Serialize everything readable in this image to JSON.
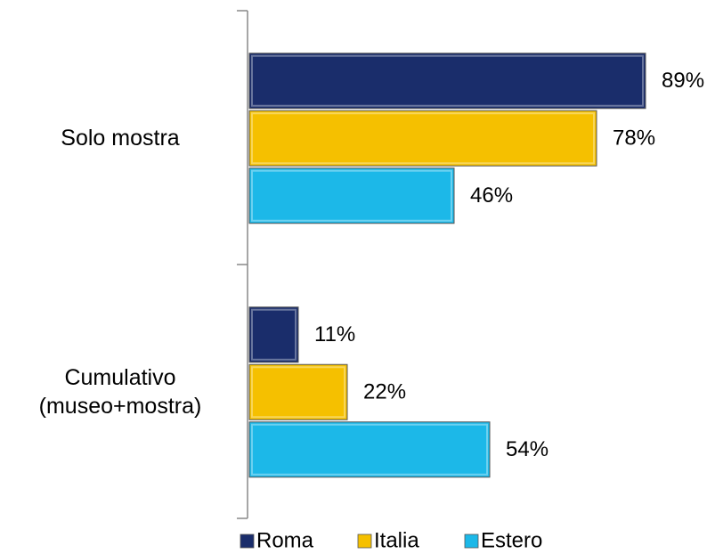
{
  "chart_data": {
    "type": "bar",
    "orientation": "horizontal",
    "categories": [
      "Solo mostra",
      "Cumulativo\n(museo+mostra)"
    ],
    "series": [
      {
        "name": "Roma",
        "color": "#1a2d6b",
        "values": [
          89,
          11
        ],
        "value_labels": [
          "89%",
          "11%"
        ]
      },
      {
        "name": "Italia",
        "color": "#f5c000",
        "values": [
          78,
          22
        ],
        "value_labels": [
          "78%",
          "22%"
        ]
      },
      {
        "name": "Estero",
        "color": "#1cb8e8",
        "values": [
          46,
          54
        ],
        "value_labels": [
          "46%",
          "54%"
        ]
      }
    ],
    "legend": "bottom"
  }
}
